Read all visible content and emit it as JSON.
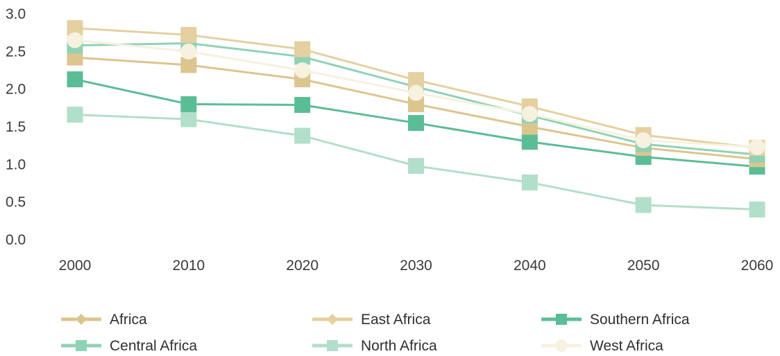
{
  "chart_data": {
    "type": "line",
    "title": "",
    "xlabel": "",
    "ylabel": "",
    "x": [
      2000,
      2010,
      2020,
      2030,
      2040,
      2050,
      2060
    ],
    "x_tick_labels": [
      "2000",
      "2010",
      "2020",
      "2030",
      "2040",
      "2050",
      "2060"
    ],
    "ylim": [
      0,
      3.0
    ],
    "y_ticks": [
      0.0,
      0.5,
      1.0,
      1.5,
      2.0,
      2.5,
      3.0
    ],
    "y_tick_labels": [
      "0.0",
      "0.5",
      "1.0",
      "1.5",
      "2.0",
      "2.5",
      "3.0"
    ],
    "grid": false,
    "legend_position": "bottom",
    "series": [
      {
        "name": "Africa",
        "color": "#dcc58e",
        "marker": "diamond",
        "values": [
          2.42,
          2.32,
          2.13,
          1.8,
          1.5,
          1.22,
          1.07
        ]
      },
      {
        "name": "East Africa",
        "color": "#e4d0a0",
        "marker": "diamond",
        "values": [
          2.81,
          2.72,
          2.53,
          2.12,
          1.77,
          1.39,
          1.22
        ]
      },
      {
        "name": "Southern Africa",
        "color": "#5bbd96",
        "marker": "square",
        "values": [
          2.13,
          1.8,
          1.79,
          1.55,
          1.3,
          1.1,
          0.97
        ]
      },
      {
        "name": "Central Africa",
        "color": "#8fd2b6",
        "marker": "square",
        "values": [
          2.58,
          2.61,
          2.43,
          2.03,
          1.65,
          1.27,
          1.13
        ]
      },
      {
        "name": "North Africa",
        "color": "#b2dfc9",
        "marker": "square",
        "values": [
          1.66,
          1.6,
          1.38,
          0.98,
          0.76,
          0.46,
          0.4
        ]
      },
      {
        "name": "West Africa",
        "color": "#f7f1df",
        "marker": "circle",
        "values": [
          2.65,
          2.5,
          2.25,
          1.95,
          1.67,
          1.32,
          1.23
        ]
      }
    ],
    "legend_marker_styles": {
      "Africa": "diamond",
      "East Africa": "diamond",
      "Southern Africa": "square",
      "Central Africa": "square",
      "North Africa": "square",
      "West Africa": "circle"
    }
  }
}
